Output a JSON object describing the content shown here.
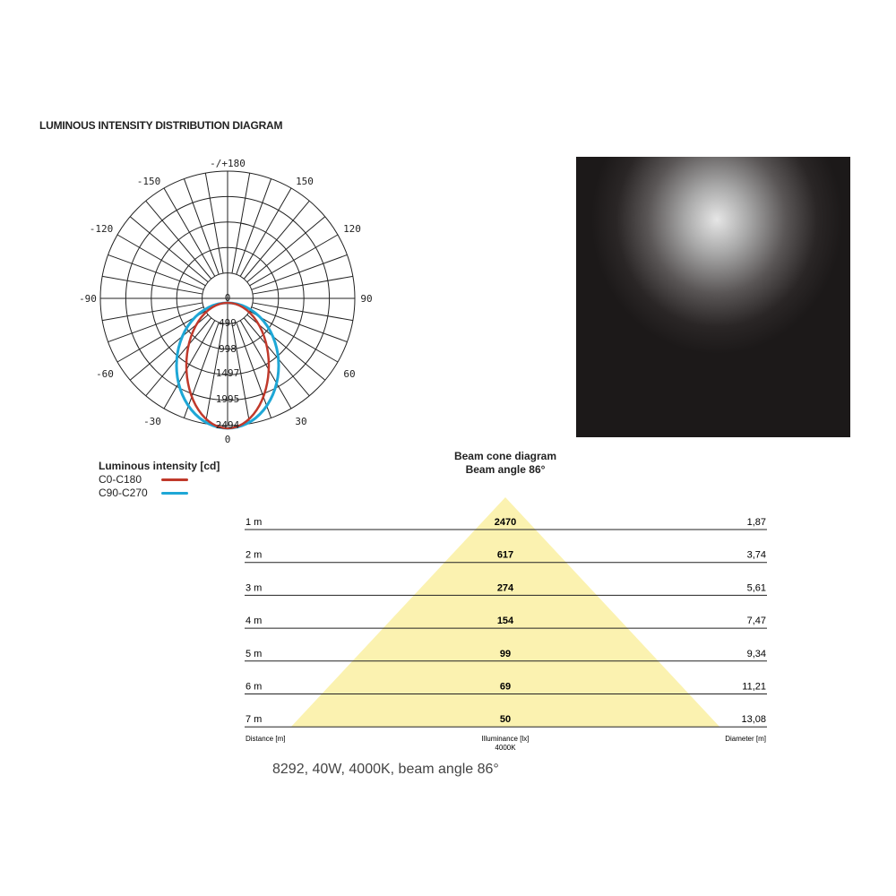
{
  "title": "LUMINOUS INTENSITY DISTRIBUTION DIAGRAM",
  "polar": {
    "angle_labels": {
      "top": "-/+180",
      "n150": "-150",
      "p150": "150",
      "n120": "-120",
      "p120": "120",
      "n90": "-90",
      "p90": "90",
      "n60": "-60",
      "p60": "60",
      "n30": "-30",
      "p30": "30",
      "bottom": "0"
    },
    "ring_labels": [
      "0",
      "499",
      "998",
      "1497",
      "1995",
      "2494"
    ]
  },
  "legend": {
    "title": "Luminous intensity [cd]",
    "series": [
      {
        "name": "C0-C180",
        "color": "#c0392b"
      },
      {
        "name": "C90-C270",
        "color": "#1ea7d6"
      }
    ]
  },
  "cone": {
    "title": "Beam cone diagram",
    "subtitle": "Beam angle 86°",
    "rows": [
      {
        "distance": "1 m",
        "lux": "2470",
        "diameter": "1,87"
      },
      {
        "distance": "2 m",
        "lux": "617",
        "diameter": "3,74"
      },
      {
        "distance": "3 m",
        "lux": "274",
        "diameter": "5,61"
      },
      {
        "distance": "4 m",
        "lux": "154",
        "diameter": "7,47"
      },
      {
        "distance": "5 m",
        "lux": "99",
        "diameter": "9,34"
      },
      {
        "distance": "6 m",
        "lux": "69",
        "diameter": "11,21"
      },
      {
        "distance": "7 m",
        "lux": "50",
        "diameter": "13,08"
      }
    ],
    "col_distance": "Distance [m]",
    "col_lux": "Illuminance [lx]",
    "col_lux_sub": "4000K",
    "col_diameter": "Diameter [m]",
    "fill_color": "#fbf2b0"
  },
  "footer": "8292, 40W, 4000K, beam angle 86°"
}
